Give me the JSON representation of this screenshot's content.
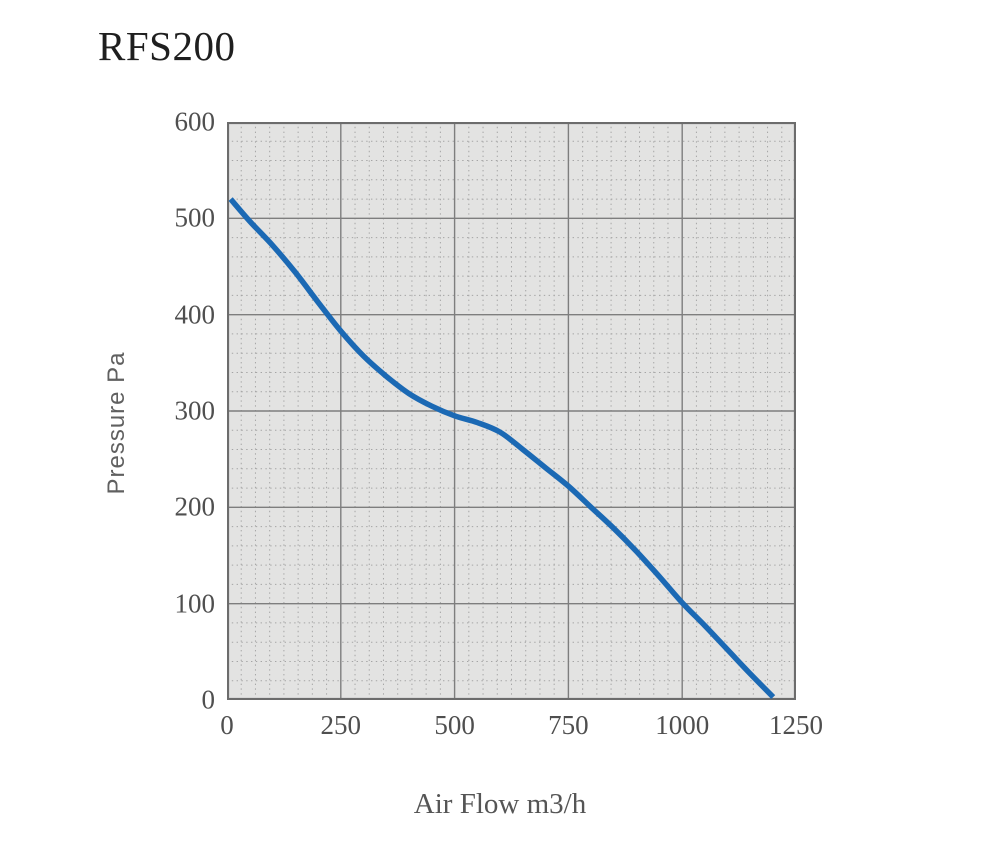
{
  "chart_data": {
    "type": "line",
    "title": "RFS200",
    "xlabel": "Air Flow m3/h",
    "ylabel": "Pressure Pa",
    "xlim": [
      0,
      1250
    ],
    "ylim": [
      0,
      600
    ],
    "x_ticks": [
      0,
      250,
      500,
      750,
      1000,
      1250
    ],
    "y_ticks": [
      0,
      100,
      200,
      300,
      400,
      500,
      600
    ],
    "x_minor_divisions_per_major": 8,
    "y_minor_divisions_per_major": 5,
    "grid": "major-solid, minor-dotted",
    "legend": "none",
    "series": [
      {
        "name": "RFS200 pressure curve",
        "points": [
          [
            8,
            520
          ],
          [
            50,
            497
          ],
          [
            100,
            472
          ],
          [
            150,
            444
          ],
          [
            200,
            413
          ],
          [
            250,
            383
          ],
          [
            300,
            357
          ],
          [
            350,
            336
          ],
          [
            400,
            318
          ],
          [
            450,
            305
          ],
          [
            500,
            295
          ],
          [
            550,
            288
          ],
          [
            600,
            278
          ],
          [
            650,
            260
          ],
          [
            700,
            241
          ],
          [
            750,
            222
          ],
          [
            800,
            200
          ],
          [
            850,
            178
          ],
          [
            900,
            154
          ],
          [
            950,
            128
          ],
          [
            1000,
            101
          ],
          [
            1050,
            77
          ],
          [
            1100,
            52
          ],
          [
            1150,
            27
          ],
          [
            1200,
            3
          ]
        ]
      }
    ],
    "colors": {
      "curve": "#1b69b4",
      "plot_background": "#e3e3e2",
      "major_grid": "#7e7e7e",
      "minor_grid": "#a5a5a5",
      "border": "#6c6c6c",
      "title_text": "#1f1f1f",
      "tick_text": "#4f4f4f",
      "axis_label_text": "#5d5d5d"
    }
  }
}
